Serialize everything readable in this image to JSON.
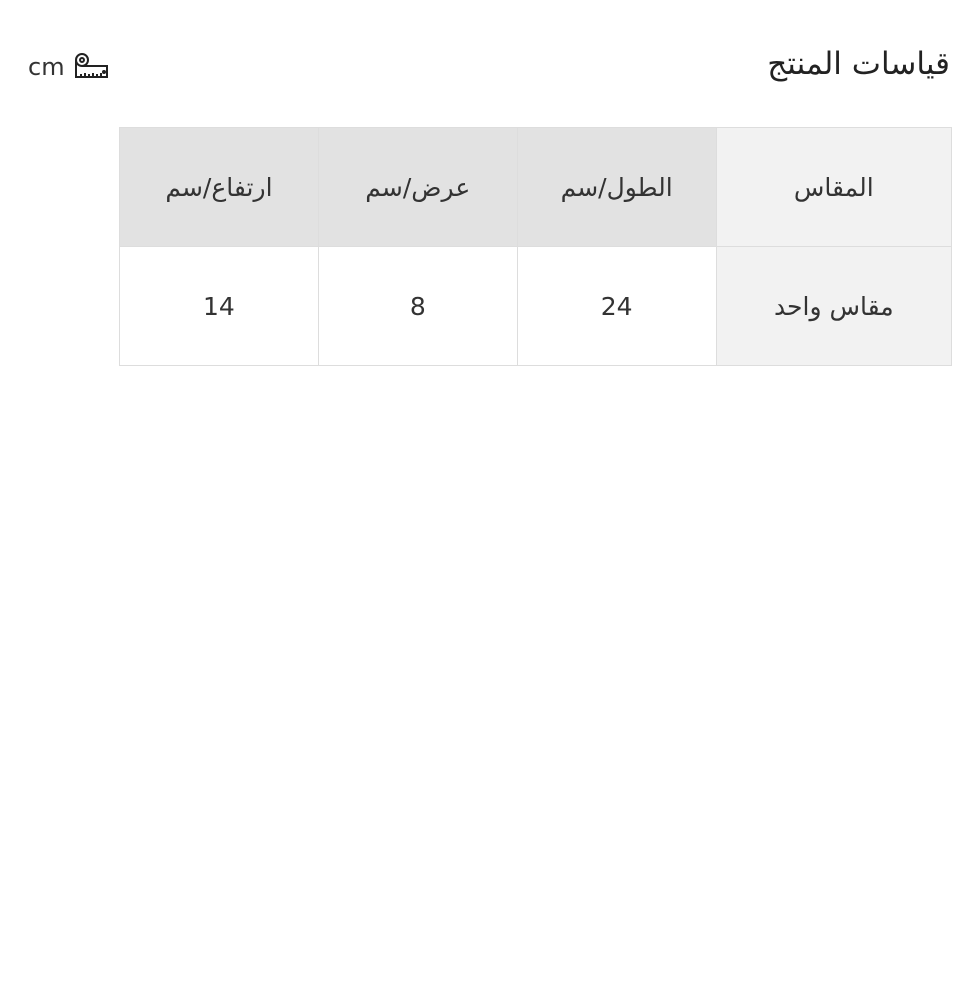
{
  "title": "قياسات المنتج",
  "unit": {
    "label": "cm",
    "icon": "measuring-tape-icon"
  },
  "table": {
    "headers": [
      "المقاس",
      "الطول/سم",
      "عرض/سم",
      "ارتفاع/سم"
    ],
    "rows": [
      [
        "مقاس واحد",
        "24",
        "8",
        "14"
      ]
    ]
  }
}
